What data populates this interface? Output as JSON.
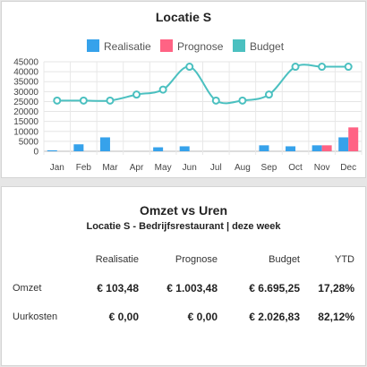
{
  "chart_card": {
    "title": "Locatie S",
    "chart_data": {
      "type": "bar",
      "categories": [
        "Jan",
        "Feb",
        "Mar",
        "Apr",
        "May",
        "Jun",
        "Jul",
        "Aug",
        "Sep",
        "Oct",
        "Nov",
        "Dec"
      ],
      "series": [
        {
          "name": "Realisatie",
          "type": "bar",
          "color": "#36a2eb",
          "values": [
            500,
            3500,
            7000,
            0,
            2000,
            2500,
            0,
            0,
            3000,
            2500,
            3000,
            7000
          ]
        },
        {
          "name": "Prognose",
          "type": "bar",
          "color": "#ff6384",
          "values": [
            0,
            0,
            0,
            0,
            0,
            0,
            0,
            0,
            0,
            0,
            3000,
            12000
          ]
        },
        {
          "name": "Budget",
          "type": "line",
          "color": "#4bc0c0",
          "values": [
            25500,
            25500,
            25500,
            28500,
            31000,
            42500,
            25500,
            25500,
            28500,
            42500,
            42500,
            42500
          ]
        }
      ],
      "y_ticks": [
        "45000",
        "40000",
        "35000",
        "30000",
        "25000",
        "20000",
        "15000",
        "10000",
        "5000",
        "0"
      ],
      "ylim": [
        0,
        45000
      ],
      "grid": true,
      "legend": "top"
    }
  },
  "table_card": {
    "title": "Omzet vs Uren",
    "subtitle": "Locatie S - Bedrijfsrestaurant | deze week",
    "headers": [
      "Realisatie",
      "Prognose",
      "Budget",
      "YTD"
    ],
    "rows": [
      {
        "label": "Omzet",
        "values": [
          "€ 103,48",
          "€ 1.003,48",
          "€ 6.695,25",
          "17,28%"
        ]
      },
      {
        "label": "Uurkosten",
        "values": [
          "€ 0,00",
          "€ 0,00",
          "€ 2.026,83",
          "82,12%"
        ]
      }
    ]
  }
}
